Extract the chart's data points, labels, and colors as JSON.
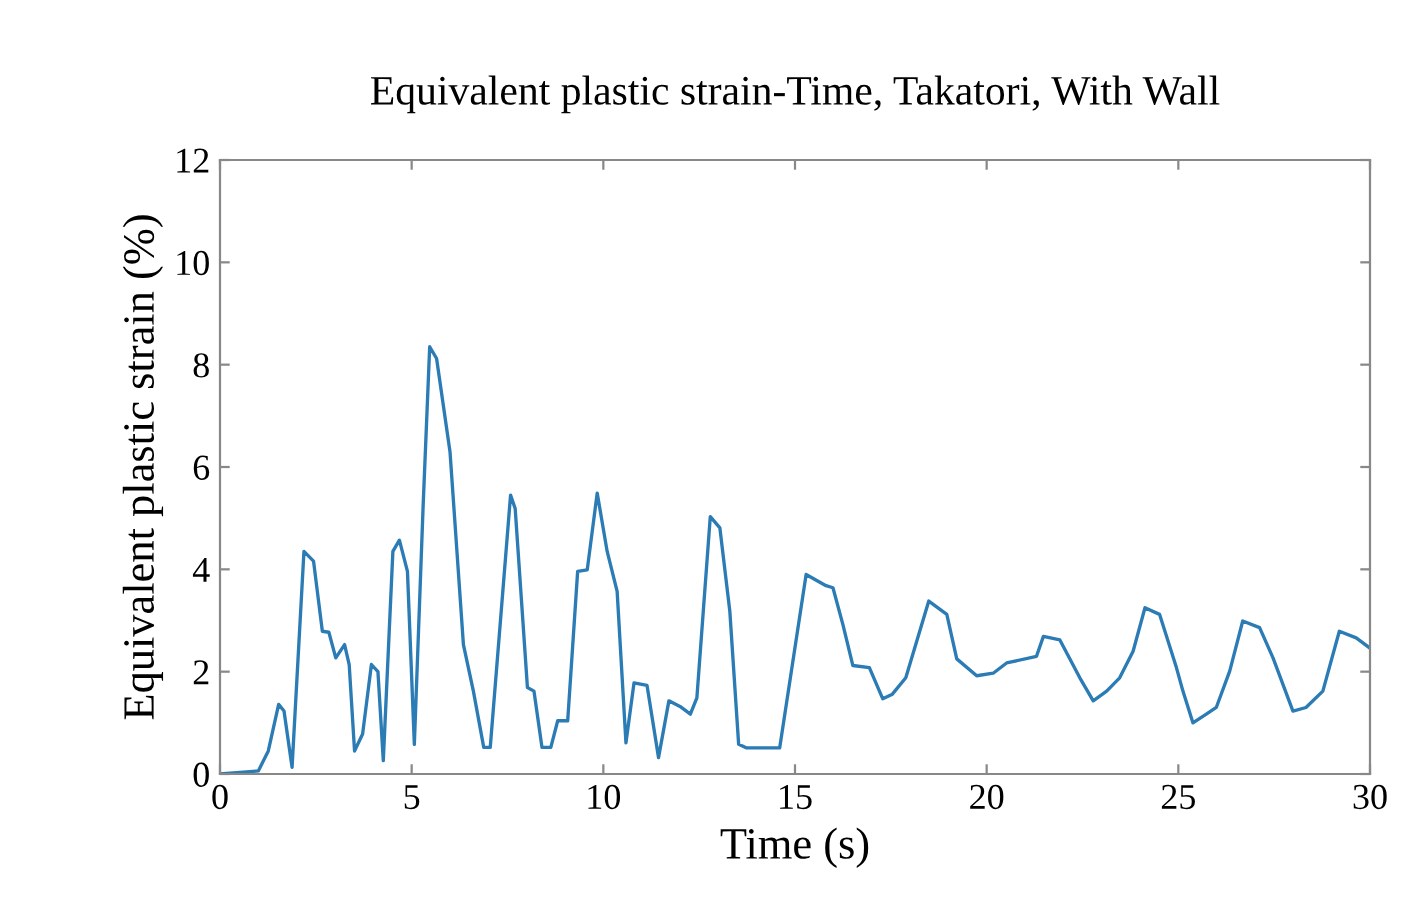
{
  "chart_data": {
    "type": "line",
    "title": "Equivalent plastic strain-Time, Takatori, With Wall",
    "xlabel": "Time (s)",
    "ylabel": "Equivalent plastic strain (%)",
    "xlim": [
      0,
      30
    ],
    "ylim": [
      0,
      12
    ],
    "xticks": [
      0,
      5,
      10,
      15,
      20,
      25,
      30
    ],
    "yticks": [
      0,
      2,
      4,
      6,
      8,
      10,
      12
    ],
    "grid": false,
    "legend": false,
    "series": [
      {
        "color": "#2b7bb5",
        "x": [
          0,
          1.0,
          1.26,
          1.53,
          1.67,
          1.88,
          2.19,
          2.44,
          2.67,
          2.84,
          3.02,
          3.25,
          3.37,
          3.51,
          3.72,
          3.95,
          4.12,
          4.26,
          4.51,
          4.68,
          4.89,
          5.07,
          5.3,
          5.47,
          5.65,
          6.0,
          6.35,
          6.61,
          6.88,
          7.05,
          7.58,
          7.7,
          8.02,
          8.19,
          8.4,
          8.63,
          8.81,
          9.07,
          9.33,
          9.58,
          9.84,
          10.1,
          10.36,
          10.59,
          10.8,
          11.14,
          11.44,
          11.71,
          12.0,
          12.27,
          12.44,
          12.79,
          13.04,
          13.3,
          13.53,
          13.74,
          14.6,
          15.29,
          15.81,
          15.99,
          16.25,
          16.51,
          16.94,
          17.29,
          17.54,
          17.89,
          18.49,
          18.96,
          19.22,
          19.74,
          20.17,
          20.52,
          21.3,
          21.48,
          21.91,
          22.43,
          22.78,
          23.13,
          23.47,
          23.82,
          24.13,
          24.51,
          24.95,
          25.12,
          25.38,
          25.73,
          25.99,
          26.34,
          26.68,
          27.12,
          27.47,
          27.99,
          28.33,
          28.77,
          29.2,
          29.64,
          29.98
        ],
        "values": [
          0,
          0.06,
          0.45,
          1.36,
          1.23,
          0.13,
          4.35,
          4.16,
          2.79,
          2.77,
          2.27,
          2.53,
          2.14,
          0.45,
          0.78,
          2.14,
          2.0,
          0.26,
          4.35,
          4.57,
          3.96,
          0.58,
          5.26,
          8.35,
          8.12,
          6.3,
          2.53,
          1.62,
          0.52,
          0.52,
          5.45,
          5.19,
          1.69,
          1.62,
          0.52,
          0.52,
          1.04,
          1.04,
          3.96,
          3.99,
          5.49,
          4.35,
          3.57,
          0.61,
          1.78,
          1.73,
          0.32,
          1.43,
          1.32,
          1.17,
          1.49,
          5.03,
          4.81,
          3.18,
          0.58,
          0.51,
          0.51,
          3.9,
          3.68,
          3.64,
          2.92,
          2.12,
          2.08,
          1.47,
          1.56,
          1.88,
          3.38,
          3.12,
          2.25,
          1.92,
          1.97,
          2.17,
          2.3,
          2.69,
          2.62,
          1.88,
          1.43,
          1.62,
          1.88,
          2.4,
          3.25,
          3.12,
          2.08,
          1.62,
          1.0,
          1.17,
          1.3,
          2.01,
          2.99,
          2.86,
          2.27,
          1.23,
          1.3,
          1.62,
          2.79,
          2.66,
          2.47
        ]
      }
    ]
  }
}
